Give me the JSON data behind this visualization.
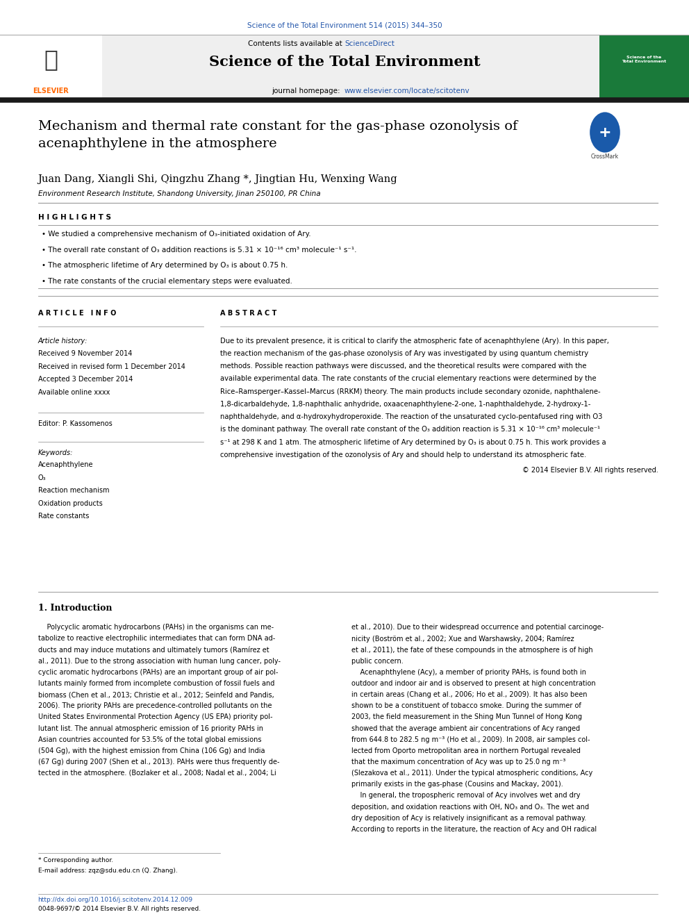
{
  "page_width": 9.92,
  "page_height": 13.23,
  "background_color": "#ffffff",
  "top_citation": "Science of the Total Environment 514 (2015) 344–350",
  "top_citation_color": "#2255aa",
  "header_bg_color": "#efefef",
  "journal_name": "Science of the Total Environment",
  "thick_bar_color": "#1a1a1a",
  "paper_title": "Mechanism and thermal rate constant for the gas-phase ozonolysis of\nacenaphthylene in the atmosphere",
  "authors": "Juan Dang, Xiangli Shi, Qingzhu Zhang *, Jingtian Hu, Wenxing Wang",
  "affiliation": "Environment Research Institute, Shandong University, Jinan 250100, PR China",
  "highlights_label": "H I G H L I G H T S",
  "highlights": [
    "• We studied a comprehensive mechanism of O₃-initiated oxidation of Ary.",
    "• The overall rate constant of O₃ addition reactions is 5.31 × 10⁻¹⁶ cm³ molecule⁻¹ s⁻¹.",
    "• The atmospheric lifetime of Ary determined by O₃ is about 0.75 h.",
    "• The rate constants of the crucial elementary steps were evaluated."
  ],
  "article_info_label": "A R T I C L E   I N F O",
  "article_history_label": "Article history:",
  "received": "Received 9 November 2014",
  "received_revised": "Received in revised form 1 December 2014",
  "accepted": "Accepted 3 December 2014",
  "available": "Available online xxxx",
  "editor_label": "Editor: P. Kassomenos",
  "keywords_label": "Keywords:",
  "keywords": [
    "Acenaphthylene",
    "O₃",
    "Reaction mechanism",
    "Oxidation products",
    "Rate constants"
  ],
  "abstract_label": "A B S T R A C T",
  "abstract_text": "Due to its prevalent presence, it is critical to clarify the atmospheric fate of acenaphthylene (Ary). In this paper,\nthe reaction mechanism of the gas-phase ozonolysis of Ary was investigated by using quantum chemistry\nmethods. Possible reaction pathways were discussed, and the theoretical results were compared with the\navailable experimental data. The rate constants of the crucial elementary reactions were determined by the\nRice–Ramsperger–Kassel–Marcus (RRKM) theory. The main products include secondary ozonide, naphthalene-\n1,8-dicarbaldehyde, 1,8-naphthalic anhydride, oxaacenaphthylene-2-one, 1-naphthaldehyde, 2-hydroxy-1-\nnaphthaldehyde, and α-hydroxyhydroperoxide. The reaction of the unsaturated cyclo-pentafused ring with O3\nis the dominant pathway. The overall rate constant of the O₃ addition reaction is 5.31 × 10⁻¹⁶ cm³ molecule⁻¹\ns⁻¹ at 298 K and 1 atm. The atmospheric lifetime of Ary determined by O₃ is about 0.75 h. This work provides a\ncomprehensive investigation of the ozonolysis of Ary and should help to understand its atmospheric fate.",
  "copyright_text": "© 2014 Elsevier B.V. All rights reserved.",
  "section1_title": "1. Introduction",
  "intro_col1": "    Polycyclic aromatic hydrocarbons (PAHs) in the organisms can me-\ntabolize to reactive electrophilic intermediates that can form DNA ad-\nducts and may induce mutations and ultimately tumors (Ramírez et\nal., 2011). Due to the strong association with human lung cancer, poly-\ncyclic aromatic hydrocarbons (PAHs) are an important group of air pol-\nlutants mainly formed from incomplete combustion of fossil fuels and\nbiomass (Chen et al., 2013; Christie et al., 2012; Seinfeld and Pandis,\n2006). The priority PAHs are precedence-controlled pollutants on the\nUnited States Environmental Protection Agency (US EPA) priority pol-\nlutant list. The annual atmospheric emission of 16 priority PAHs in\nAsian countries accounted for 53.5% of the total global emissions\n(504 Gg), with the highest emission from China (106 Gg) and India\n(67 Gg) during 2007 (Shen et al., 2013). PAHs were thus frequently de-\ntected in the atmosphere. (Bozlaker et al., 2008; Nadal et al., 2004; Li",
  "intro_col2": "et al., 2010). Due to their widespread occurrence and potential carcinoge-\nnicity (Boström et al., 2002; Xue and Warshawsky, 2004; Ramírez\net al., 2011), the fate of these compounds in the atmosphere is of high\npublic concern.\n    Acenaphthylene (Acy), a member of priority PAHs, is found both in\noutdoor and indoor air and is observed to present at high concentration\nin certain areas (Chang et al., 2006; Ho et al., 2009). It has also been\nshown to be a constituent of tobacco smoke. During the summer of\n2003, the field measurement in the Shing Mun Tunnel of Hong Kong\nshowed that the average ambient air concentrations of Acy ranged\nfrom 644.8 to 282.5 ng m⁻³ (Ho et al., 2009). In 2008, air samples col-\nlected from Oporto metropolitan area in northern Portugal revealed\nthat the maximum concentration of Acy was up to 25.0 ng m⁻³\n(Slezakova et al., 2011). Under the typical atmospheric conditions, Acy\nprimarily exists in the gas-phase (Cousins and Mackay, 2001).\n    In general, the tropospheric removal of Acy involves wet and dry\ndeposition, and oxidation reactions with OH, NO₃ and O₃. The wet and\ndry deposition of Acy is relatively insignificant as a removal pathway.\nAccording to reports in the literature, the reaction of Acy and OH radical",
  "footnote_corresponding": "* Corresponding author.",
  "footnote_email": "E-mail address: zqz@sdu.edu.cn (Q. Zhang).",
  "footer_doi": "http://dx.doi.org/10.1016/j.scitotenv.2014.12.009",
  "footer_issn": "0048-9697/© 2014 Elsevier B.V. All rights reserved.",
  "text_color": "#000000",
  "link_color": "#2255aa"
}
